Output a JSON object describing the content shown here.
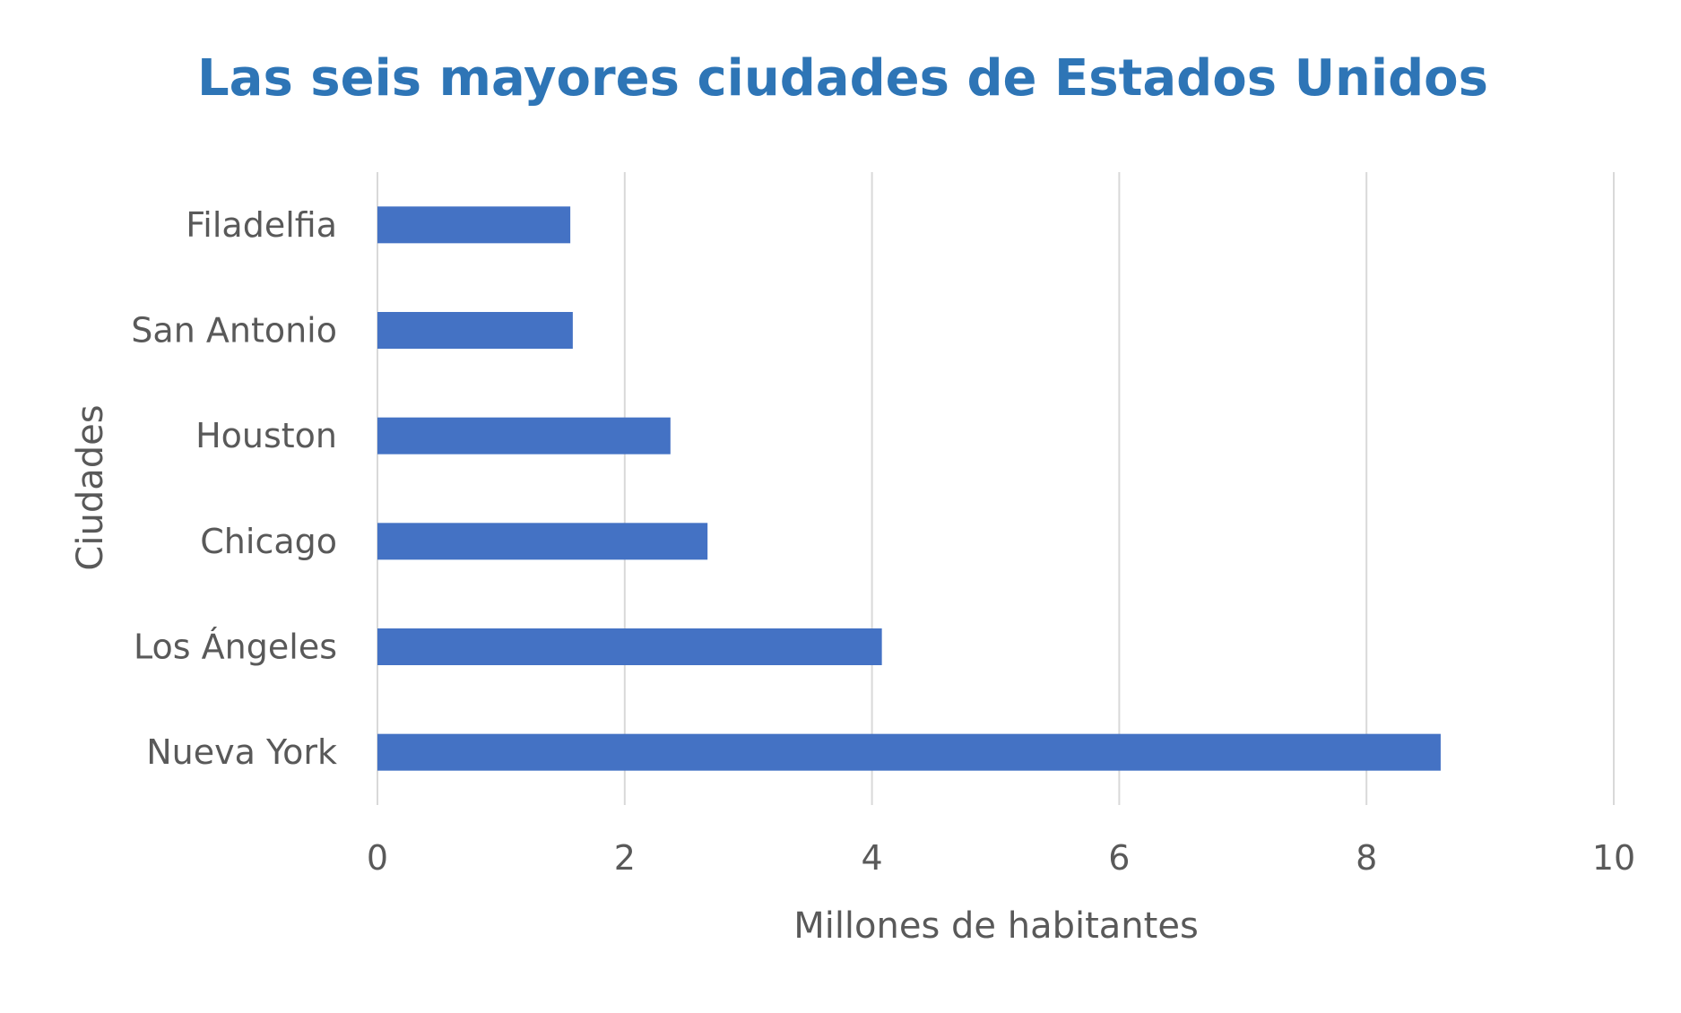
{
  "chart_data": {
    "type": "bar",
    "orientation": "horizontal",
    "title": "Las seis mayores ciudades de Estados Unidos",
    "xlabel": "Millones de habitantes",
    "ylabel": "Ciudades",
    "categories": [
      "Nueva York",
      "Los Ángeles",
      "Chicago",
      "Houston",
      "San Antonio",
      "Filadelfia"
    ],
    "values": [
      8.6,
      4.08,
      2.67,
      2.37,
      1.58,
      1.56
    ],
    "xlim": [
      0,
      10
    ],
    "xticks": [
      "0",
      "2",
      "4",
      "6",
      "8",
      "10"
    ],
    "grid": true,
    "legend": "none",
    "colors": {
      "bar": "#4472C4",
      "title": "#2E75B6",
      "grid": "#D9D9D9",
      "text": "#595959"
    }
  }
}
